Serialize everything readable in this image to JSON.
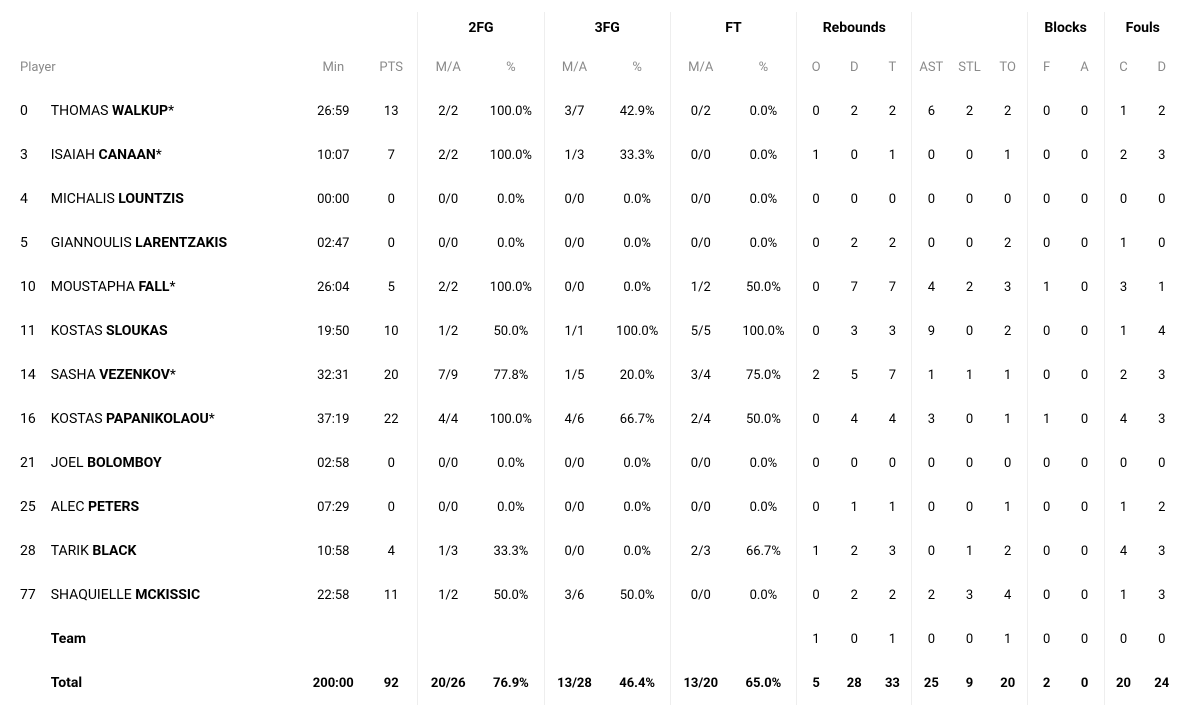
{
  "headerGroups": {
    "fg2": "2FG",
    "fg3": "3FG",
    "ft": "FT",
    "rebounds": "Rebounds",
    "blocks": "Blocks",
    "fouls": "Fouls"
  },
  "columns": {
    "player": "Player",
    "min": "Min",
    "pts": "PTS",
    "ma": "M/A",
    "pct": "%",
    "o": "O",
    "d": "D",
    "t": "T",
    "ast": "AST",
    "stl": "STL",
    "to": "TO",
    "f": "F",
    "a": "A",
    "c": "C",
    "d2": "D"
  },
  "players": [
    {
      "num": "0",
      "first": "THOMAS",
      "last": "WALKUP",
      "starter": true,
      "min": "26:59",
      "pts": "13",
      "fg2_ma": "2/2",
      "fg2_pct": "100.0%",
      "fg3_ma": "3/7",
      "fg3_pct": "42.9%",
      "ft_ma": "0/2",
      "ft_pct": "0.0%",
      "reb_o": "0",
      "reb_d": "2",
      "reb_t": "2",
      "ast": "6",
      "stl": "2",
      "to": "2",
      "blk_f": "0",
      "blk_a": "0",
      "fl_c": "1",
      "fl_d": "2"
    },
    {
      "num": "3",
      "first": "ISAIAH",
      "last": "CANAAN",
      "starter": true,
      "min": "10:07",
      "pts": "7",
      "fg2_ma": "2/2",
      "fg2_pct": "100.0%",
      "fg3_ma": "1/3",
      "fg3_pct": "33.3%",
      "ft_ma": "0/0",
      "ft_pct": "0.0%",
      "reb_o": "1",
      "reb_d": "0",
      "reb_t": "1",
      "ast": "0",
      "stl": "0",
      "to": "1",
      "blk_f": "0",
      "blk_a": "0",
      "fl_c": "2",
      "fl_d": "3"
    },
    {
      "num": "4",
      "first": "MICHALIS",
      "last": "LOUNTZIS",
      "starter": false,
      "min": "00:00",
      "pts": "0",
      "fg2_ma": "0/0",
      "fg2_pct": "0.0%",
      "fg3_ma": "0/0",
      "fg3_pct": "0.0%",
      "ft_ma": "0/0",
      "ft_pct": "0.0%",
      "reb_o": "0",
      "reb_d": "0",
      "reb_t": "0",
      "ast": "0",
      "stl": "0",
      "to": "0",
      "blk_f": "0",
      "blk_a": "0",
      "fl_c": "0",
      "fl_d": "0"
    },
    {
      "num": "5",
      "first": "GIANNOULIS",
      "last": "LARENTZAKIS",
      "starter": false,
      "min": "02:47",
      "pts": "0",
      "fg2_ma": "0/0",
      "fg2_pct": "0.0%",
      "fg3_ma": "0/0",
      "fg3_pct": "0.0%",
      "ft_ma": "0/0",
      "ft_pct": "0.0%",
      "reb_o": "0",
      "reb_d": "2",
      "reb_t": "2",
      "ast": "0",
      "stl": "0",
      "to": "2",
      "blk_f": "0",
      "blk_a": "0",
      "fl_c": "1",
      "fl_d": "0"
    },
    {
      "num": "10",
      "first": "MOUSTAPHA",
      "last": "FALL",
      "starter": true,
      "min": "26:04",
      "pts": "5",
      "fg2_ma": "2/2",
      "fg2_pct": "100.0%",
      "fg3_ma": "0/0",
      "fg3_pct": "0.0%",
      "ft_ma": "1/2",
      "ft_pct": "50.0%",
      "reb_o": "0",
      "reb_d": "7",
      "reb_t": "7",
      "ast": "4",
      "stl": "2",
      "to": "3",
      "blk_f": "1",
      "blk_a": "0",
      "fl_c": "3",
      "fl_d": "1"
    },
    {
      "num": "11",
      "first": "KOSTAS",
      "last": "SLOUKAS",
      "starter": false,
      "min": "19:50",
      "pts": "10",
      "fg2_ma": "1/2",
      "fg2_pct": "50.0%",
      "fg3_ma": "1/1",
      "fg3_pct": "100.0%",
      "ft_ma": "5/5",
      "ft_pct": "100.0%",
      "reb_o": "0",
      "reb_d": "3",
      "reb_t": "3",
      "ast": "9",
      "stl": "0",
      "to": "2",
      "blk_f": "0",
      "blk_a": "0",
      "fl_c": "1",
      "fl_d": "4"
    },
    {
      "num": "14",
      "first": "SASHA",
      "last": "VEZENKOV",
      "starter": true,
      "min": "32:31",
      "pts": "20",
      "fg2_ma": "7/9",
      "fg2_pct": "77.8%",
      "fg3_ma": "1/5",
      "fg3_pct": "20.0%",
      "ft_ma": "3/4",
      "ft_pct": "75.0%",
      "reb_o": "2",
      "reb_d": "5",
      "reb_t": "7",
      "ast": "1",
      "stl": "1",
      "to": "1",
      "blk_f": "0",
      "blk_a": "0",
      "fl_c": "2",
      "fl_d": "3"
    },
    {
      "num": "16",
      "first": "KOSTAS",
      "last": "PAPANIKOLAOU",
      "starter": true,
      "min": "37:19",
      "pts": "22",
      "fg2_ma": "4/4",
      "fg2_pct": "100.0%",
      "fg3_ma": "4/6",
      "fg3_pct": "66.7%",
      "ft_ma": "2/4",
      "ft_pct": "50.0%",
      "reb_o": "0",
      "reb_d": "4",
      "reb_t": "4",
      "ast": "3",
      "stl": "0",
      "to": "1",
      "blk_f": "1",
      "blk_a": "0",
      "fl_c": "4",
      "fl_d": "3"
    },
    {
      "num": "21",
      "first": "JOEL",
      "last": "BOLOMBOY",
      "starter": false,
      "min": "02:58",
      "pts": "0",
      "fg2_ma": "0/0",
      "fg2_pct": "0.0%",
      "fg3_ma": "0/0",
      "fg3_pct": "0.0%",
      "ft_ma": "0/0",
      "ft_pct": "0.0%",
      "reb_o": "0",
      "reb_d": "0",
      "reb_t": "0",
      "ast": "0",
      "stl": "0",
      "to": "0",
      "blk_f": "0",
      "blk_a": "0",
      "fl_c": "0",
      "fl_d": "0"
    },
    {
      "num": "25",
      "first": "ALEC",
      "last": "PETERS",
      "starter": false,
      "min": "07:29",
      "pts": "0",
      "fg2_ma": "0/0",
      "fg2_pct": "0.0%",
      "fg3_ma": "0/0",
      "fg3_pct": "0.0%",
      "ft_ma": "0/0",
      "ft_pct": "0.0%",
      "reb_o": "0",
      "reb_d": "1",
      "reb_t": "1",
      "ast": "0",
      "stl": "0",
      "to": "1",
      "blk_f": "0",
      "blk_a": "0",
      "fl_c": "1",
      "fl_d": "2"
    },
    {
      "num": "28",
      "first": "TARIK",
      "last": "BLACK",
      "starter": false,
      "min": "10:58",
      "pts": "4",
      "fg2_ma": "1/3",
      "fg2_pct": "33.3%",
      "fg3_ma": "0/0",
      "fg3_pct": "0.0%",
      "ft_ma": "2/3",
      "ft_pct": "66.7%",
      "reb_o": "1",
      "reb_d": "2",
      "reb_t": "3",
      "ast": "0",
      "stl": "1",
      "to": "2",
      "blk_f": "0",
      "blk_a": "0",
      "fl_c": "4",
      "fl_d": "3"
    },
    {
      "num": "77",
      "first": "SHAQUIELLE",
      "last": "MCKISSIC",
      "starter": false,
      "min": "22:58",
      "pts": "11",
      "fg2_ma": "1/2",
      "fg2_pct": "50.0%",
      "fg3_ma": "3/6",
      "fg3_pct": "50.0%",
      "ft_ma": "0/0",
      "ft_pct": "0.0%",
      "reb_o": "0",
      "reb_d": "2",
      "reb_t": "2",
      "ast": "2",
      "stl": "3",
      "to": "4",
      "blk_f": "0",
      "blk_a": "0",
      "fl_c": "1",
      "fl_d": "3"
    }
  ],
  "team": {
    "label": "Team",
    "min": "",
    "pts": "",
    "fg2_ma": "",
    "fg2_pct": "",
    "fg3_ma": "",
    "fg3_pct": "",
    "ft_ma": "",
    "ft_pct": "",
    "reb_o": "1",
    "reb_d": "0",
    "reb_t": "1",
    "ast": "0",
    "stl": "0",
    "to": "1",
    "blk_f": "0",
    "blk_a": "0",
    "fl_c": "0",
    "fl_d": "0"
  },
  "total": {
    "label": "Total",
    "min": "200:00",
    "pts": "92",
    "fg2_ma": "20/26",
    "fg2_pct": "76.9%",
    "fg3_ma": "13/28",
    "fg3_pct": "46.4%",
    "ft_ma": "13/20",
    "ft_pct": "65.0%",
    "reb_o": "5",
    "reb_d": "28",
    "reb_t": "33",
    "ast": "25",
    "stl": "9",
    "to": "20",
    "blk_f": "2",
    "blk_a": "0",
    "fl_c": "20",
    "fl_d": "24"
  }
}
